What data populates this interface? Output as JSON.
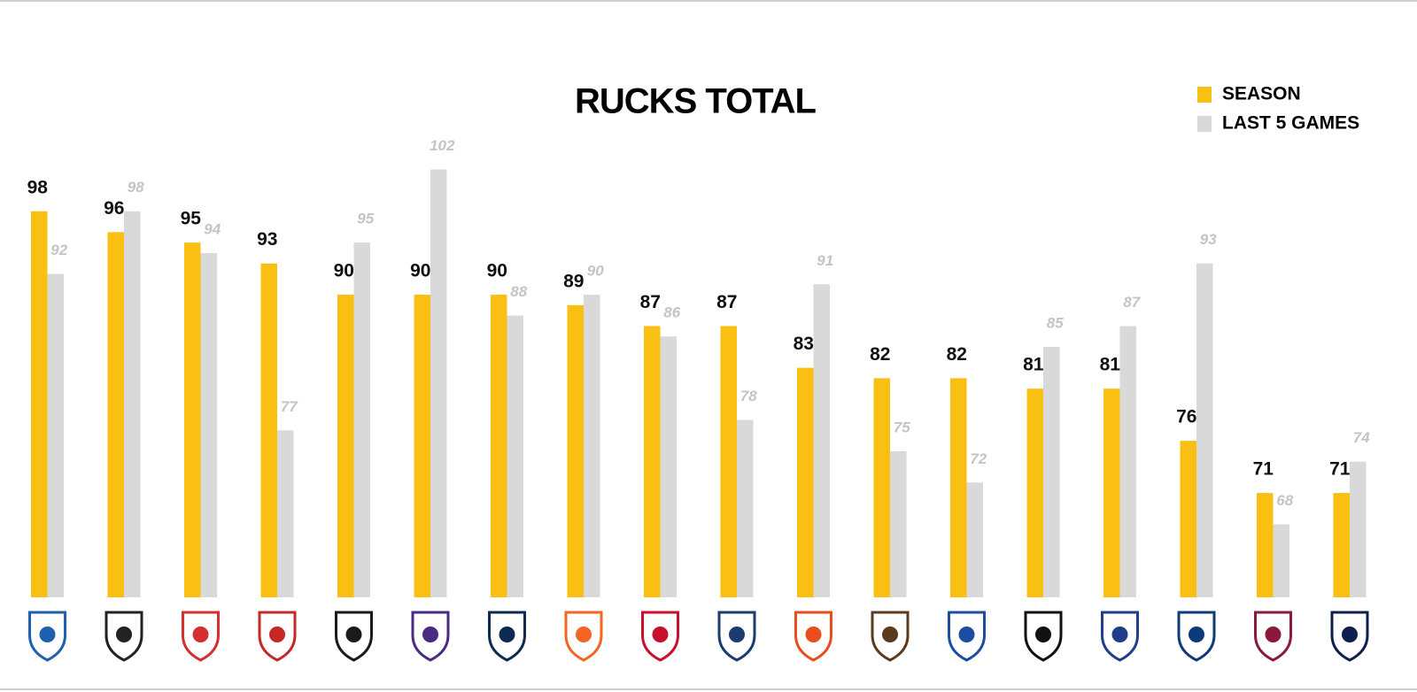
{
  "chart_data": {
    "type": "bar",
    "title": "RUCKS TOTAL",
    "categories": [
      null,
      null,
      null,
      null,
      null,
      null,
      null,
      null,
      null,
      null,
      null,
      null,
      null,
      null,
      null,
      null,
      null,
      null
    ],
    "series": [
      {
        "name": "SEASON",
        "color": "#f9c013",
        "values": [
          98,
          96,
          95,
          93,
          90,
          90,
          90,
          89,
          87,
          87,
          83,
          82,
          82,
          81,
          81,
          76,
          71,
          71
        ]
      },
      {
        "name": "LAST 5 GAMES",
        "color": "#d9d9d9",
        "values": [
          92,
          98,
          94,
          77,
          95,
          102,
          88,
          90,
          86,
          78,
          91,
          75,
          72,
          85,
          87,
          93,
          68,
          74
        ]
      }
    ],
    "ylim": [
      61,
      104
    ],
    "grid": false,
    "legend": "top-right"
  }
}
